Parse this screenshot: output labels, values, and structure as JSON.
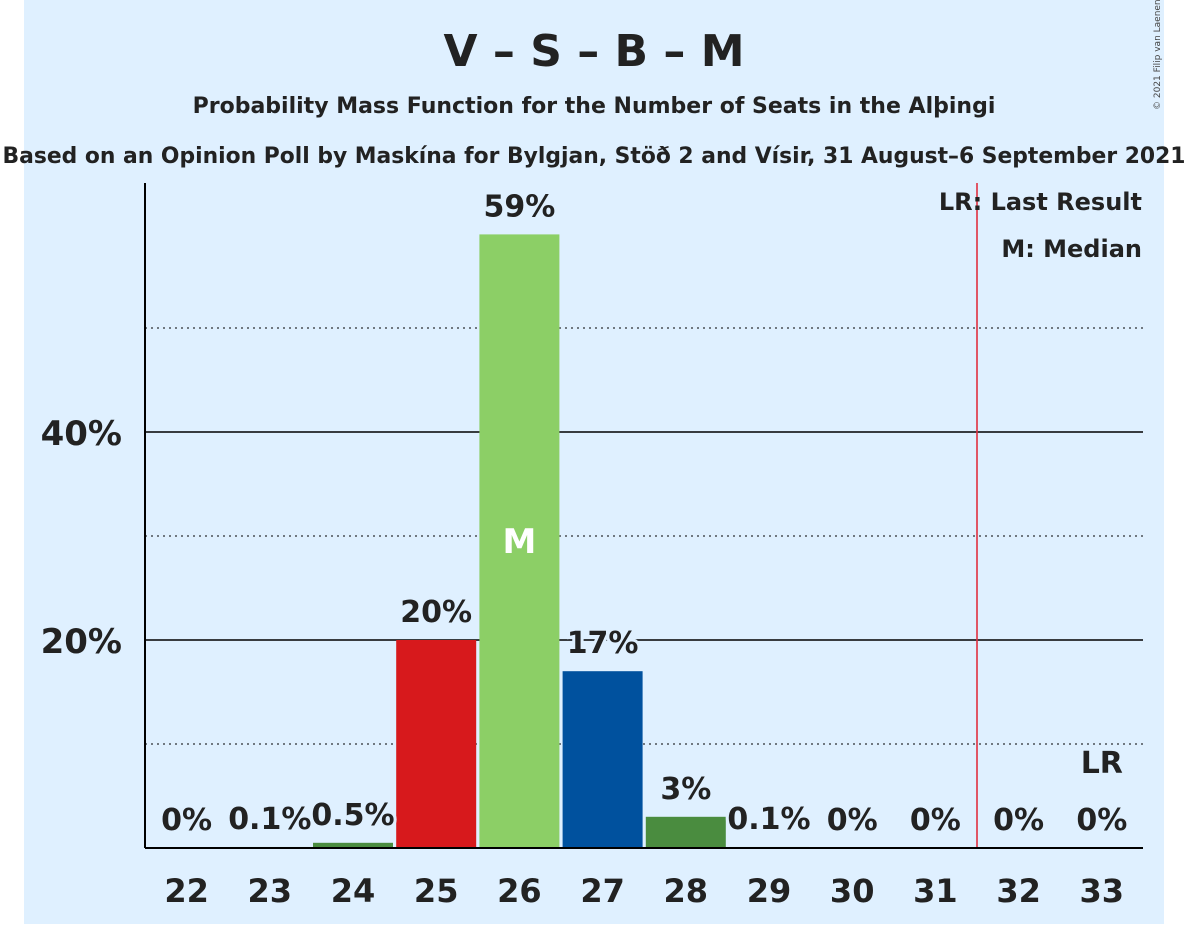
{
  "chart_data": {
    "type": "bar",
    "title": "V – S – B – M",
    "subtitle": "Probability Mass Function for the Number of Seats in the Alþingi",
    "subtitle2": "Based on an Opinion Poll by Maskína for Bylgjan, Stöð 2 and Vísir, 31 August–6 September 2021",
    "copyright": "© 2021 Filip van Laenen",
    "categories": [
      "22",
      "23",
      "24",
      "25",
      "26",
      "27",
      "28",
      "29",
      "30",
      "31",
      "32",
      "33"
    ],
    "values": [
      0,
      0.1,
      0.5,
      20,
      59,
      17,
      3,
      0.1,
      0,
      0,
      0,
      0
    ],
    "value_labels": [
      "0%",
      "0.1%",
      "0.5%",
      "20%",
      "59%",
      "17%",
      "3%",
      "0.1%",
      "0%",
      "0%",
      "0%",
      "0%"
    ],
    "bar_colors": [
      "#8ccf66",
      "#8ccf66",
      "#4a8c3f",
      "#d7191c",
      "#8ccf66",
      "#00519e",
      "#4a8c3f",
      "#8ccf66",
      "#8ccf66",
      "#8ccf66",
      "#8ccf66",
      "#8ccf66"
    ],
    "y_ticks": [
      {
        "value": 20,
        "label": "20%"
      },
      {
        "value": 40,
        "label": "40%"
      }
    ],
    "minor_gridlines": [
      10,
      30,
      50
    ],
    "ylim": [
      0,
      60
    ],
    "median": {
      "seats": "26",
      "label": "M"
    },
    "last_result": {
      "seats_between": [
        "31",
        "32"
      ],
      "marker_seat": "33",
      "label": "LR"
    },
    "legend": {
      "placement": "top-right",
      "items": [
        "LR: Last Result",
        "M: Median"
      ]
    },
    "colors": {
      "background": "#dff0ff",
      "axis": "#000000",
      "last_result_line": "#e03040",
      "median_text": "#ffffff"
    }
  }
}
